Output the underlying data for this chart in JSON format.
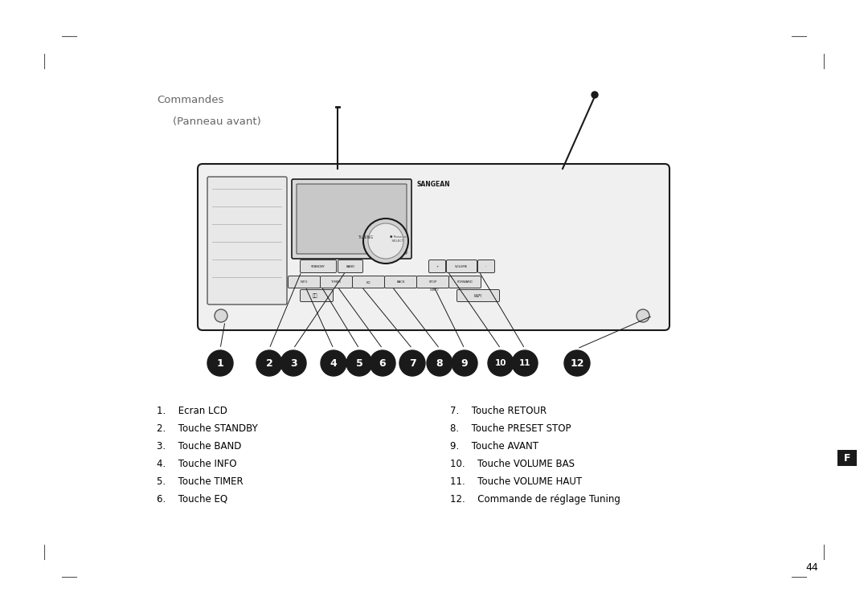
{
  "title": "Commandes",
  "subtitle": "(Panneau avant)",
  "bg_color": "#ffffff",
  "text_color": "#000000",
  "gray_color": "#888888",
  "page_number": "44",
  "left_items": [
    "1.  Ecran LCD",
    "2.  Touche STANDBY",
    "3.  Touche BAND",
    "4.  Touche INFO",
    "5.  Touche TIMER",
    "6.  Touche EQ"
  ],
  "right_items": [
    "7.  Touche RETOUR",
    "8.  Touche PRESET STOP",
    "9.  Touche AVANT",
    "10.  Touche VOLUME BAS",
    "11.  Touche VOLUME HAUT",
    "12.  Commande de réglage Tuning"
  ],
  "f_box_color": "#1a1a1a",
  "f_text_color": "#ffffff",
  "circle_fill": "#1a1a1a",
  "circle_text_color": "#ffffff",
  "numbers": [
    "1",
    "2",
    "3",
    "4",
    "5",
    "6",
    "7",
    "8",
    "9",
    "10",
    "11",
    "12"
  ],
  "corner_marks": true
}
